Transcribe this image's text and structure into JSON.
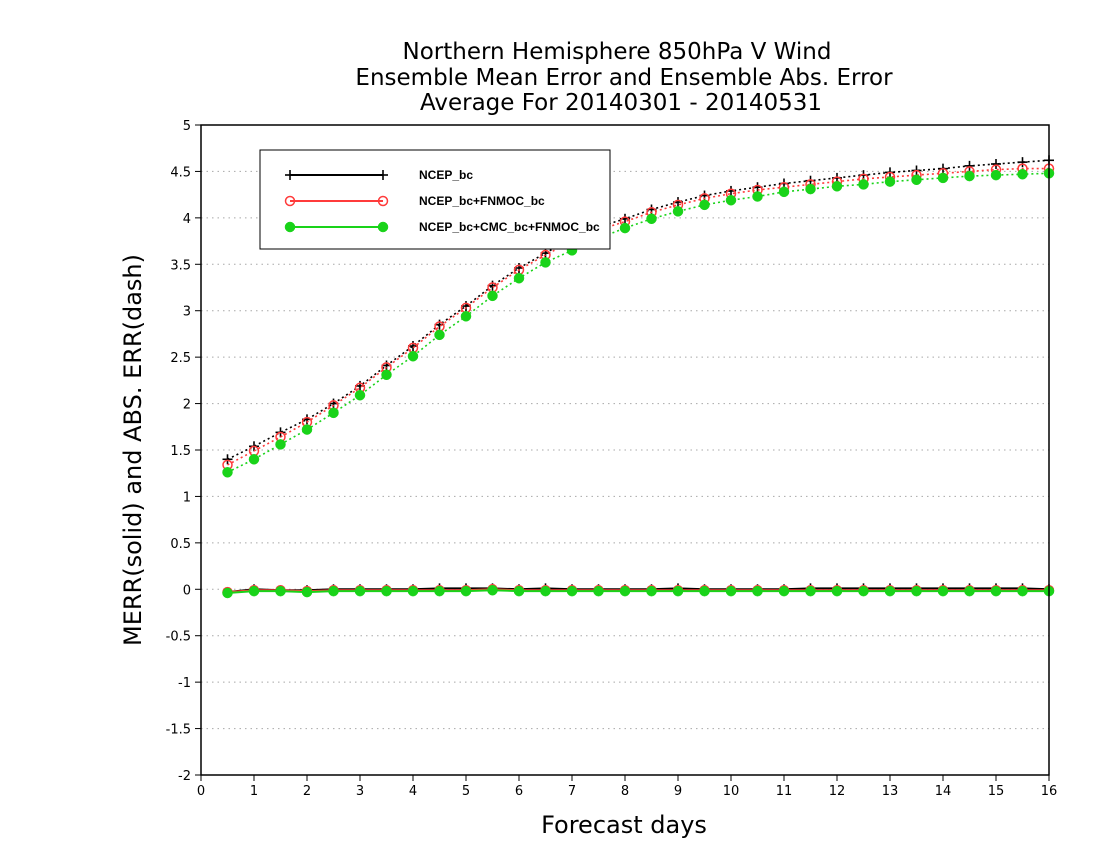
{
  "chart_data": {
    "type": "line",
    "title": [
      "Northern Hemisphere 850hPa V Wind",
      "Ensemble Mean Error and Ensemble Abs. Error",
      "Average For 20140301 - 20140531"
    ],
    "xlabel": "Forecast days",
    "ylabel": "MERR(solid) and ABS. ERR(dash)",
    "xlim": [
      0,
      16
    ],
    "ylim": [
      -2,
      5
    ],
    "xticks": [
      0,
      1,
      2,
      3,
      4,
      5,
      6,
      7,
      8,
      9,
      10,
      11,
      12,
      13,
      14,
      15,
      16
    ],
    "yticks": [
      -2,
      -1.5,
      -1,
      -0.5,
      0,
      0.5,
      1,
      1.5,
      2,
      2.5,
      3,
      3.5,
      4,
      4.5,
      5
    ],
    "ytick_labels": [
      "-2",
      "-1.5",
      "-1",
      "-0.5",
      "0",
      "0.5",
      "1",
      "1.5",
      "2",
      "2.5",
      "3",
      "3.5",
      "4",
      "4.5",
      "5"
    ],
    "grid": true,
    "legend_position": "top-left",
    "x": [
      0.5,
      1,
      1.5,
      2,
      2.5,
      3,
      3.5,
      4,
      4.5,
      5,
      5.5,
      6,
      6.5,
      7,
      7.5,
      8,
      8.5,
      9,
      9.5,
      10,
      10.5,
      11,
      11.5,
      12,
      12.5,
      13,
      13.5,
      14,
      14.5,
      15,
      15.5,
      16
    ],
    "series": [
      {
        "name": "NCEP_bc",
        "color": "#000000",
        "marker": "plus",
        "abs_err": [
          1.4,
          1.54,
          1.69,
          1.83,
          2.0,
          2.19,
          2.41,
          2.62,
          2.85,
          3.05,
          3.27,
          3.46,
          3.62,
          3.78,
          3.9,
          3.99,
          4.09,
          4.17,
          4.24,
          4.29,
          4.33,
          4.37,
          4.4,
          4.43,
          4.46,
          4.49,
          4.51,
          4.53,
          4.56,
          4.58,
          4.6,
          4.62
        ],
        "mean_err": [
          -0.03,
          0.0,
          -0.01,
          -0.01,
          0.0,
          0.0,
          0.0,
          0.0,
          0.01,
          0.01,
          0.01,
          0.0,
          0.01,
          0.0,
          0.0,
          0.0,
          0.0,
          0.01,
          0.0,
          0.0,
          0.0,
          0.0,
          0.01,
          0.01,
          0.01,
          0.01,
          0.01,
          0.01,
          0.01,
          0.01,
          0.01,
          0.0
        ]
      },
      {
        "name": "NCEP_bc+FNMOC_bc",
        "color": "#ff3b3b",
        "marker": "circle-open",
        "abs_err": [
          1.34,
          1.49,
          1.64,
          1.8,
          1.98,
          2.17,
          2.39,
          2.6,
          2.83,
          3.03,
          3.25,
          3.44,
          3.6,
          3.75,
          3.87,
          3.96,
          4.06,
          4.14,
          4.21,
          4.26,
          4.3,
          4.33,
          4.36,
          4.39,
          4.42,
          4.44,
          4.46,
          4.48,
          4.5,
          4.52,
          4.53,
          4.53
        ],
        "mean_err": [
          -0.03,
          -0.01,
          -0.01,
          -0.02,
          -0.01,
          -0.01,
          -0.01,
          -0.01,
          -0.01,
          -0.01,
          0.0,
          -0.01,
          -0.01,
          -0.01,
          -0.01,
          -0.01,
          -0.01,
          -0.01,
          -0.01,
          -0.01,
          -0.01,
          -0.01,
          -0.01,
          -0.01,
          -0.01,
          -0.01,
          -0.01,
          -0.01,
          -0.01,
          -0.01,
          -0.01,
          -0.01
        ]
      },
      {
        "name": "NCEP_bc+CMC_bc+FNMOC_bc",
        "color": "#19d319",
        "marker": "circle-filled",
        "abs_err": [
          1.26,
          1.4,
          1.56,
          1.72,
          1.9,
          2.09,
          2.31,
          2.51,
          2.74,
          2.94,
          3.16,
          3.35,
          3.52,
          3.65,
          3.78,
          3.89,
          3.99,
          4.07,
          4.14,
          4.19,
          4.23,
          4.28,
          4.31,
          4.34,
          4.36,
          4.39,
          4.41,
          4.43,
          4.45,
          4.46,
          4.47,
          4.48
        ],
        "mean_err": [
          -0.04,
          -0.02,
          -0.02,
          -0.03,
          -0.02,
          -0.02,
          -0.02,
          -0.02,
          -0.02,
          -0.02,
          -0.01,
          -0.02,
          -0.02,
          -0.02,
          -0.02,
          -0.02,
          -0.02,
          -0.02,
          -0.02,
          -0.02,
          -0.02,
          -0.02,
          -0.02,
          -0.02,
          -0.02,
          -0.02,
          -0.02,
          -0.02,
          -0.02,
          -0.02,
          -0.02,
          -0.02
        ]
      }
    ]
  }
}
